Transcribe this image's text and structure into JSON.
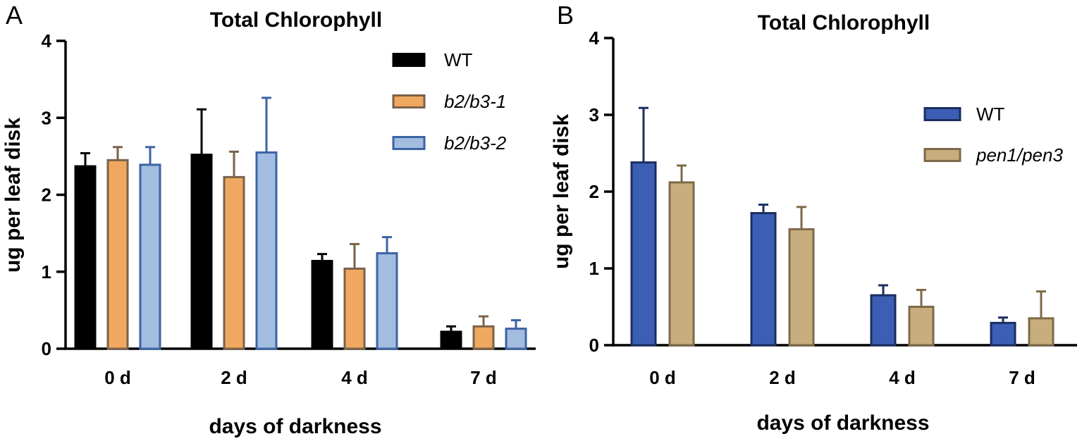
{
  "chart_data": [
    {
      "type": "bar",
      "panel_label": "A",
      "title": "Total  Chlorophyll",
      "xlabel": "days of darkness",
      "ylabel": "ug per leaf disk",
      "ylim": [
        0,
        4
      ],
      "yticks": [
        "0",
        "1",
        "2",
        "3",
        "4"
      ],
      "categories": [
        "0 d",
        "2 d",
        "4 d",
        "7 d"
      ],
      "legend_position": "top-right",
      "series": [
        {
          "name": "WT",
          "italic": false,
          "fill": "#000000",
          "stroke": "#000000",
          "values": [
            2.37,
            2.52,
            1.14,
            0.22
          ],
          "errors": [
            0.17,
            0.59,
            0.09,
            0.07
          ]
        },
        {
          "name": "b2/b3-1",
          "italic": true,
          "fill": "#f0a860",
          "stroke": "#7a6249",
          "values": [
            2.45,
            2.23,
            1.04,
            0.29
          ],
          "errors": [
            0.17,
            0.33,
            0.32,
            0.13
          ]
        },
        {
          "name": "b2/b3-2",
          "italic": true,
          "fill": "#a3bde0",
          "stroke": "#3c63a6",
          "values": [
            2.39,
            2.55,
            1.24,
            0.26
          ],
          "errors": [
            0.23,
            0.71,
            0.21,
            0.11
          ]
        }
      ]
    },
    {
      "type": "bar",
      "panel_label": "B",
      "title": "Total  Chlorophyll",
      "xlabel": "days of darkness",
      "ylabel": "ug per leaf disk",
      "ylim": [
        0,
        4
      ],
      "yticks": [
        "0",
        "1",
        "2",
        "3",
        "4"
      ],
      "categories": [
        "0 d",
        "2 d",
        "4 d",
        "7 d"
      ],
      "legend_position": "top-right",
      "series": [
        {
          "name": "WT",
          "italic": false,
          "fill": "#3c5fb5",
          "stroke": "#1a2e60",
          "values": [
            2.38,
            1.72,
            0.65,
            0.29
          ],
          "errors": [
            0.71,
            0.11,
            0.13,
            0.07
          ]
        },
        {
          "name": "pen1/pen3",
          "italic": true,
          "fill": "#c8ad7e",
          "stroke": "#7e6a48",
          "values": [
            2.12,
            1.51,
            0.5,
            0.35
          ],
          "errors": [
            0.22,
            0.29,
            0.22,
            0.35
          ]
        }
      ]
    }
  ]
}
